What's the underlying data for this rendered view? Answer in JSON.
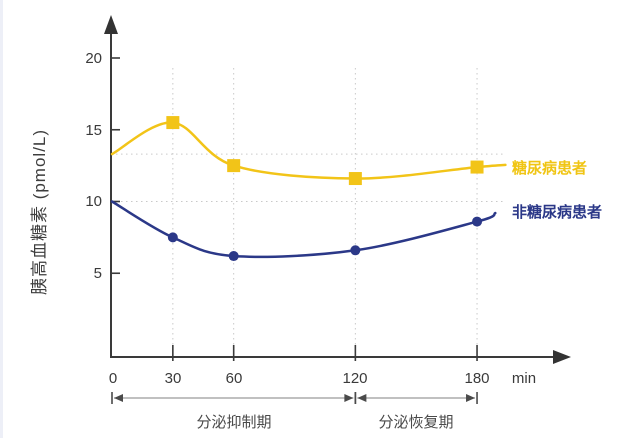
{
  "chart_data": {
    "type": "line",
    "ylabel": "胰高血糖素 (pmol/L)",
    "x_unit_label": "min",
    "yticks": [
      20,
      15,
      10,
      5
    ],
    "xticks": [
      0,
      30,
      60,
      120,
      180
    ],
    "ylim": [
      0,
      22
    ],
    "xlim": [
      0,
      195
    ],
    "grid": {
      "vertical_at_x": [
        30,
        60,
        120,
        180
      ],
      "horizontal_at_y": [
        13.3,
        10
      ]
    },
    "legend": {
      "position": "right-of-line-ends",
      "entries": [
        "糖尿病患者",
        "非糖尿病患者"
      ]
    },
    "series": [
      {
        "name": "糖尿病患者",
        "color": "#f2c418",
        "marker": "square",
        "x": [
          0,
          30,
          60,
          120,
          180
        ],
        "values": [
          13.3,
          15.5,
          12.5,
          11.6,
          12.4
        ],
        "markers_at": [
          30,
          60,
          120,
          180
        ],
        "line_extends_to": {
          "x": 194,
          "value": 12.55
        }
      },
      {
        "name": "非糖尿病患者",
        "color": "#2b3888",
        "marker": "circle",
        "x": [
          0,
          30,
          60,
          120,
          180
        ],
        "values": [
          10,
          7.5,
          6.2,
          6.6,
          8.6
        ],
        "markers_at": [
          30,
          60,
          120,
          180
        ],
        "line_extends_to": {
          "x": 189,
          "value": 9.2
        }
      }
    ],
    "phase_annotations": [
      {
        "label": "分泌抑制期",
        "from_x": 0,
        "to_x": 120
      },
      {
        "label": "分泌恢复期",
        "from_x": 120,
        "to_x": 180
      }
    ],
    "colors": {
      "axis": "#3a3a3a",
      "grid": "#c9c9c9",
      "annotation_line": "#9a9a9a",
      "annotation_marks": "#4a4a4a",
      "text": "#3d3d3d"
    }
  }
}
